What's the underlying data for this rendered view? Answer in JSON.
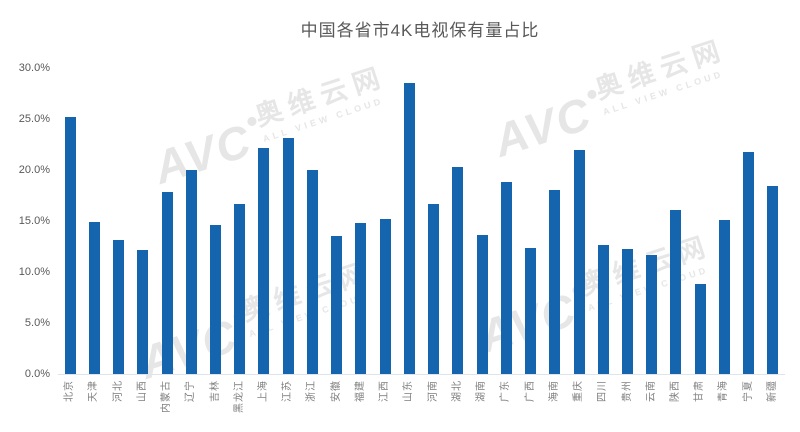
{
  "title": "中国各省市4K电视保有量占比",
  "watermark": {
    "logo": "AVC",
    "brand_cn": "奥维云网",
    "brand_en": "ALL VIEW CLOUD"
  },
  "colors": {
    "bar": "#1465ad",
    "title_text": "#595959",
    "ytick_text": "#595959",
    "xtick_text": "#7f7f7f",
    "axis_line": "#dde4ec",
    "watermark": "#e6e6e6"
  },
  "chart_data": {
    "type": "bar",
    "title": "中国各省市4K电视保有量占比",
    "xlabel": "",
    "ylabel": "",
    "unit": "%",
    "ylim": [
      0,
      30
    ],
    "ytick_step": 5,
    "ytick_labels": [
      "0.0%",
      "5.0%",
      "10.0%",
      "15.0%",
      "20.0%",
      "25.0%",
      "30.0%"
    ],
    "grid": false,
    "legend": false,
    "categories": [
      "北京",
      "天津",
      "河北",
      "山西",
      "内蒙古",
      "辽宁",
      "吉林",
      "黑龙江",
      "上海",
      "江苏",
      "浙江",
      "安徽",
      "福建",
      "江西",
      "山东",
      "河南",
      "湖北",
      "湖南",
      "广东",
      "广西",
      "海南",
      "重庆",
      "四川",
      "贵州",
      "云南",
      "陕西",
      "甘肃",
      "青海",
      "宁夏",
      "新疆"
    ],
    "values": [
      25.2,
      14.9,
      13.1,
      12.2,
      17.8,
      20.0,
      14.6,
      16.7,
      22.2,
      23.1,
      20.0,
      13.5,
      14.8,
      15.2,
      28.5,
      16.7,
      20.3,
      13.6,
      18.8,
      12.4,
      18.0,
      22.0,
      12.7,
      12.3,
      11.7,
      16.1,
      8.8,
      15.1,
      21.8,
      18.4
    ]
  }
}
